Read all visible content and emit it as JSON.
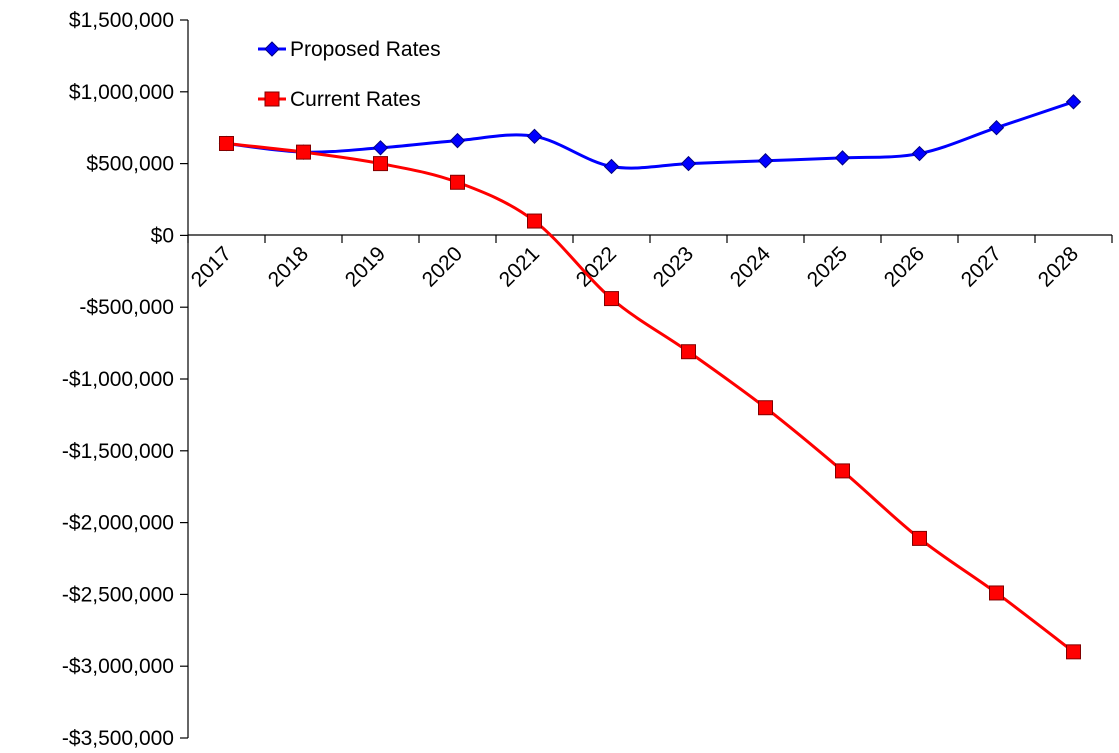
{
  "chart_data": {
    "type": "line",
    "title": "",
    "xlabel": "",
    "ylabel": "",
    "categories": [
      "2017",
      "2018",
      "2019",
      "2020",
      "2021",
      "2022",
      "2023",
      "2024",
      "2025",
      "2026",
      "2027",
      "2028"
    ],
    "ylim": [
      -3500000,
      1500000
    ],
    "yticks": [
      1500000,
      1000000,
      500000,
      0,
      -500000,
      -1000000,
      -1500000,
      -2000000,
      -2500000,
      -3000000,
      -3500000
    ],
    "ytick_labels": [
      "$1,500,000",
      "$1,000,000",
      "$500,000",
      "$0",
      "-$500,000",
      "-$1,000,000",
      "-$1,500,000",
      "-$2,000,000",
      "-$2,500,000",
      "-$3,000,000",
      "-$3,500,000"
    ],
    "grid": false,
    "legend_position": "top-left",
    "series": [
      {
        "name": "Proposed Rates",
        "color": "#0000ff",
        "marker": "diamond",
        "values": [
          640000,
          580000,
          610000,
          660000,
          690000,
          480000,
          500000,
          520000,
          540000,
          570000,
          750000,
          930000
        ]
      },
      {
        "name": "Current Rates",
        "color": "#ff0000",
        "marker": "square",
        "values": [
          640000,
          580000,
          500000,
          370000,
          100000,
          -440000,
          -810000,
          -1200000,
          -1640000,
          -2110000,
          -2490000,
          -2900000
        ]
      }
    ]
  }
}
